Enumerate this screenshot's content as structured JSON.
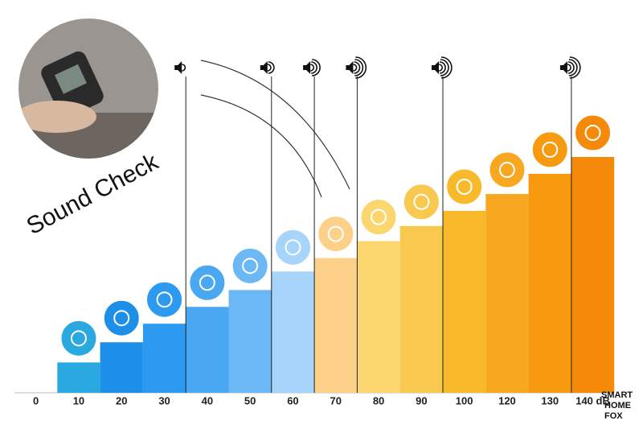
{
  "chart_data": {
    "type": "bar",
    "title": "Sound Check",
    "categories": [
      "0",
      "10",
      "20",
      "30",
      "40",
      "50",
      "60",
      "70",
      "80",
      "90",
      "100",
      "120",
      "130",
      "140 dB"
    ],
    "values": [
      0,
      18,
      30,
      41,
      51,
      61,
      72,
      80,
      90,
      99,
      108,
      118,
      130,
      140
    ],
    "colors": [
      "#29a9e0",
      "#29a9e0",
      "#1e8fe8",
      "#2b9af0",
      "#4aa8f2",
      "#6bb8f5",
      "#a6d4fa",
      "#fdd08a",
      "#fbd56e",
      "#f9c84e",
      "#f8b92a",
      "#f8a820",
      "#f79a10",
      "#f58a0a"
    ],
    "ylim": [
      0,
      140
    ]
  },
  "logo": [
    "SMART",
    "HOME",
    "FOX"
  ]
}
